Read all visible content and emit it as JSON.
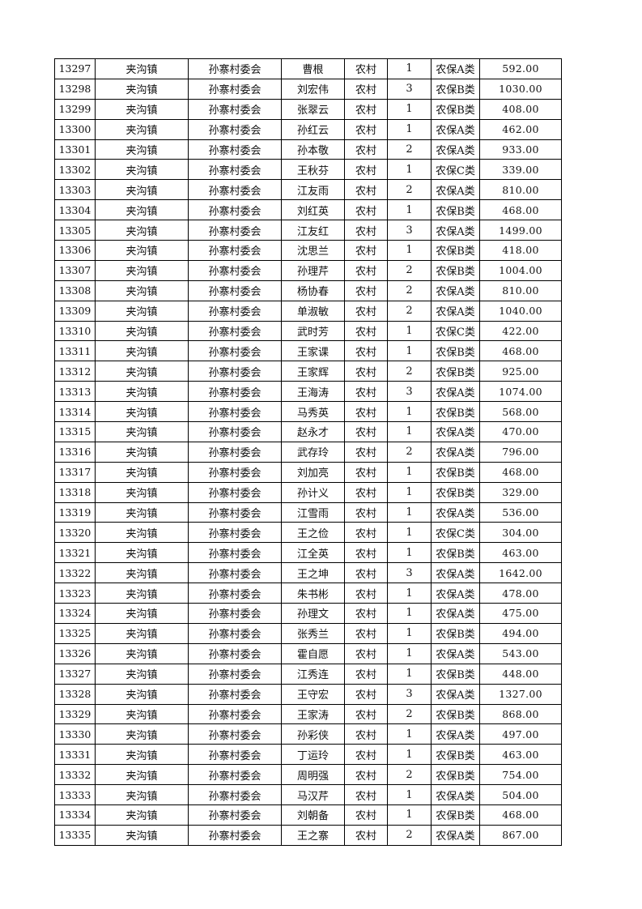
{
  "columns": [
    "id",
    "town",
    "village",
    "name",
    "area",
    "count",
    "category",
    "amount"
  ],
  "rows": [
    [
      "13297",
      "夹沟镇",
      "孙寨村委会",
      "曹根",
      "农村",
      "1",
      "农保A类",
      "592.00"
    ],
    [
      "13298",
      "夹沟镇",
      "孙寨村委会",
      "刘宏伟",
      "农村",
      "3",
      "农保B类",
      "1030.00"
    ],
    [
      "13299",
      "夹沟镇",
      "孙寨村委会",
      "张翠云",
      "农村",
      "1",
      "农保B类",
      "408.00"
    ],
    [
      "13300",
      "夹沟镇",
      "孙寨村委会",
      "孙红云",
      "农村",
      "1",
      "农保A类",
      "462.00"
    ],
    [
      "13301",
      "夹沟镇",
      "孙寨村委会",
      "孙本敬",
      "农村",
      "2",
      "农保A类",
      "933.00"
    ],
    [
      "13302",
      "夹沟镇",
      "孙寨村委会",
      "王秋芬",
      "农村",
      "1",
      "农保C类",
      "339.00"
    ],
    [
      "13303",
      "夹沟镇",
      "孙寨村委会",
      "江友雨",
      "农村",
      "2",
      "农保A类",
      "810.00"
    ],
    [
      "13304",
      "夹沟镇",
      "孙寨村委会",
      "刘红英",
      "农村",
      "1",
      "农保B类",
      "468.00"
    ],
    [
      "13305",
      "夹沟镇",
      "孙寨村委会",
      "江友红",
      "农村",
      "3",
      "农保A类",
      "1499.00"
    ],
    [
      "13306",
      "夹沟镇",
      "孙寨村委会",
      "沈思兰",
      "农村",
      "1",
      "农保B类",
      "418.00"
    ],
    [
      "13307",
      "夹沟镇",
      "孙寨村委会",
      "孙理芹",
      "农村",
      "2",
      "农保B类",
      "1004.00"
    ],
    [
      "13308",
      "夹沟镇",
      "孙寨村委会",
      "杨协春",
      "农村",
      "2",
      "农保A类",
      "810.00"
    ],
    [
      "13309",
      "夹沟镇",
      "孙寨村委会",
      "单淑敏",
      "农村",
      "2",
      "农保A类",
      "1040.00"
    ],
    [
      "13310",
      "夹沟镇",
      "孙寨村委会",
      "武时芳",
      "农村",
      "1",
      "农保C类",
      "422.00"
    ],
    [
      "13311",
      "夹沟镇",
      "孙寨村委会",
      "王家课",
      "农村",
      "1",
      "农保B类",
      "468.00"
    ],
    [
      "13312",
      "夹沟镇",
      "孙寨村委会",
      "王家辉",
      "农村",
      "2",
      "农保B类",
      "925.00"
    ],
    [
      "13313",
      "夹沟镇",
      "孙寨村委会",
      "王海涛",
      "农村",
      "3",
      "农保A类",
      "1074.00"
    ],
    [
      "13314",
      "夹沟镇",
      "孙寨村委会",
      "马秀英",
      "农村",
      "1",
      "农保B类",
      "568.00"
    ],
    [
      "13315",
      "夹沟镇",
      "孙寨村委会",
      "赵永才",
      "农村",
      "1",
      "农保A类",
      "470.00"
    ],
    [
      "13316",
      "夹沟镇",
      "孙寨村委会",
      "武存玲",
      "农村",
      "2",
      "农保A类",
      "796.00"
    ],
    [
      "13317",
      "夹沟镇",
      "孙寨村委会",
      "刘加亮",
      "农村",
      "1",
      "农保B类",
      "468.00"
    ],
    [
      "13318",
      "夹沟镇",
      "孙寨村委会",
      "孙计义",
      "农村",
      "1",
      "农保B类",
      "329.00"
    ],
    [
      "13319",
      "夹沟镇",
      "孙寨村委会",
      "江雪雨",
      "农村",
      "1",
      "农保A类",
      "536.00"
    ],
    [
      "13320",
      "夹沟镇",
      "孙寨村委会",
      "王之俭",
      "农村",
      "1",
      "农保C类",
      "304.00"
    ],
    [
      "13321",
      "夹沟镇",
      "孙寨村委会",
      "江全英",
      "农村",
      "1",
      "农保B类",
      "463.00"
    ],
    [
      "13322",
      "夹沟镇",
      "孙寨村委会",
      "王之坤",
      "农村",
      "3",
      "农保A类",
      "1642.00"
    ],
    [
      "13323",
      "夹沟镇",
      "孙寨村委会",
      "朱书彬",
      "农村",
      "1",
      "农保A类",
      "478.00"
    ],
    [
      "13324",
      "夹沟镇",
      "孙寨村委会",
      "孙理文",
      "农村",
      "1",
      "农保A类",
      "475.00"
    ],
    [
      "13325",
      "夹沟镇",
      "孙寨村委会",
      "张秀兰",
      "农村",
      "1",
      "农保B类",
      "494.00"
    ],
    [
      "13326",
      "夹沟镇",
      "孙寨村委会",
      "霍自愿",
      "农村",
      "1",
      "农保A类",
      "543.00"
    ],
    [
      "13327",
      "夹沟镇",
      "孙寨村委会",
      "江秀连",
      "农村",
      "1",
      "农保B类",
      "448.00"
    ],
    [
      "13328",
      "夹沟镇",
      "孙寨村委会",
      "王守宏",
      "农村",
      "3",
      "农保A类",
      "1327.00"
    ],
    [
      "13329",
      "夹沟镇",
      "孙寨村委会",
      "王家涛",
      "农村",
      "2",
      "农保B类",
      "868.00"
    ],
    [
      "13330",
      "夹沟镇",
      "孙寨村委会",
      "孙彩侠",
      "农村",
      "1",
      "农保A类",
      "497.00"
    ],
    [
      "13331",
      "夹沟镇",
      "孙寨村委会",
      "丁运玲",
      "农村",
      "1",
      "农保B类",
      "463.00"
    ],
    [
      "13332",
      "夹沟镇",
      "孙寨村委会",
      "周明强",
      "农村",
      "2",
      "农保B类",
      "754.00"
    ],
    [
      "13333",
      "夹沟镇",
      "孙寨村委会",
      "马汉芹",
      "农村",
      "1",
      "农保A类",
      "504.00"
    ],
    [
      "13334",
      "夹沟镇",
      "孙寨村委会",
      "刘朝备",
      "农村",
      "1",
      "农保B类",
      "468.00"
    ],
    [
      "13335",
      "夹沟镇",
      "孙寨村委会",
      "王之寨",
      "农村",
      "2",
      "农保A类",
      "867.00"
    ]
  ]
}
